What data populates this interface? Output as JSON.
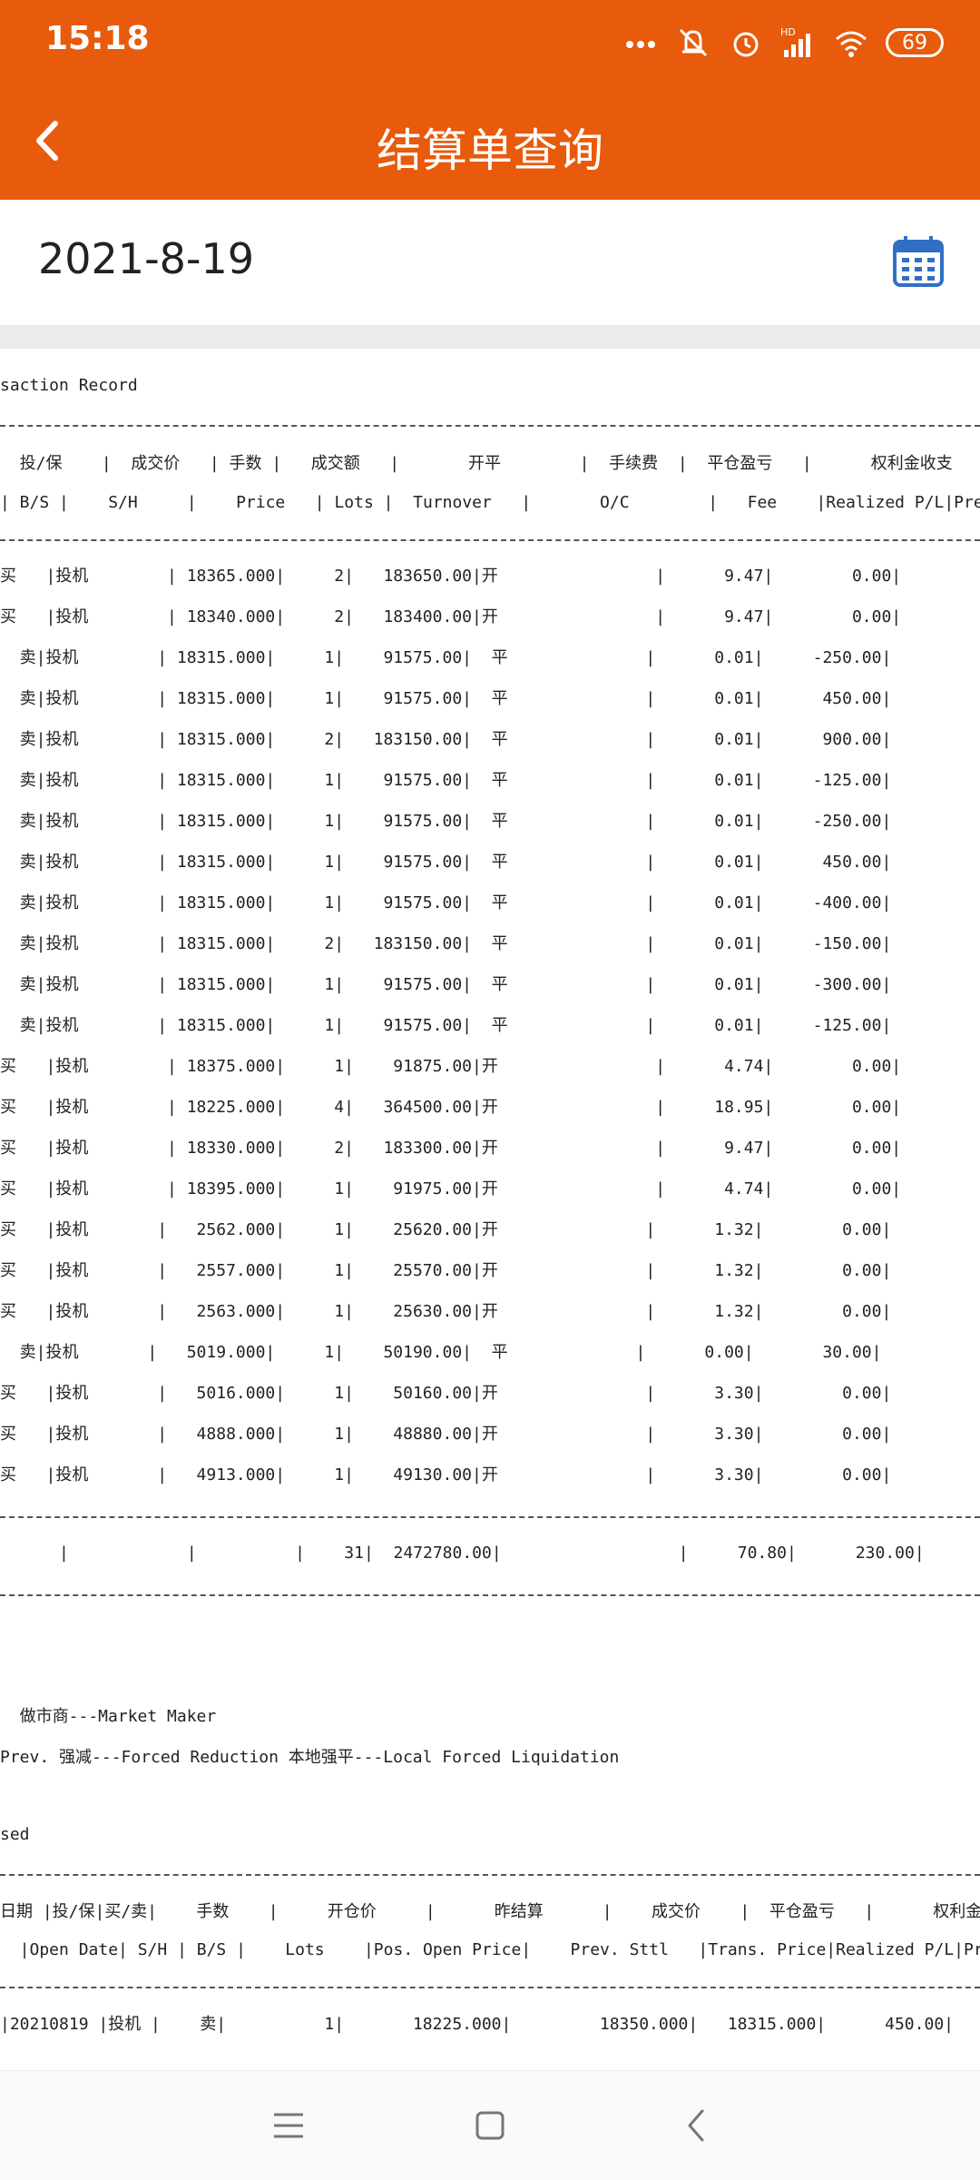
{
  "status_bar": {
    "time": "15:18",
    "network": "HD",
    "battery": "69",
    "icons": [
      "more-dots-icon",
      "bell-muted-icon",
      "alarm-icon",
      "signal-icon",
      "wifi-icon",
      "battery-icon"
    ]
  },
  "header": {
    "title": "结算单查询",
    "back_icon": "chevron-left-icon"
  },
  "date_row": {
    "date": "2021-8-19",
    "calendar_icon": "calendar-icon"
  },
  "report": {
    "section_title": "saction Record",
    "header_cn": "  投/保    |  成交价   | 手数 |   成交额   |       开平        |  手续费  |  平仓盈亏   |      权利金收支      |",
    "header_en": "| B/S |    S/H     |    Price   | Lots |  Turnover   |       O/C        |   Fee    |Realized P/L|Premium Re",
    "rows": [
      "买   |投机        | 18365.000|     2|   183650.00|开                |      9.47|        0.00|",
      "买   |投机        | 18340.000|     2|   183400.00|开                |      9.47|        0.00|",
      "  卖|投机        | 18315.000|     1|    91575.00|  平              |      0.01|     -250.00|",
      "  卖|投机        | 18315.000|     1|    91575.00|  平              |      0.01|      450.00|",
      "  卖|投机        | 18315.000|     2|   183150.00|  平              |      0.01|      900.00|",
      "  卖|投机        | 18315.000|     1|    91575.00|  平              |      0.01|     -125.00|",
      "  卖|投机        | 18315.000|     1|    91575.00|  平              |      0.01|     -250.00|",
      "  卖|投机        | 18315.000|     1|    91575.00|  平              |      0.01|      450.00|",
      "  卖|投机        | 18315.000|     1|    91575.00|  平              |      0.01|     -400.00|",
      "  卖|投机        | 18315.000|     2|   183150.00|  平              |      0.01|     -150.00|",
      "  卖|投机        | 18315.000|     1|    91575.00|  平              |      0.01|     -300.00|",
      "  卖|投机        | 18315.000|     1|    91575.00|  平              |      0.01|     -125.00|",
      "买   |投机        | 18375.000|     1|    91875.00|开                |      4.74|        0.00|",
      "买   |投机        | 18225.000|     4|   364500.00|开                |     18.95|        0.00|",
      "买   |投机        | 18330.000|     2|   183300.00|开                |      9.47|        0.00|",
      "买   |投机        | 18395.000|     1|    91975.00|开                |      4.74|        0.00|",
      "买   |投机       |   2562.000|     1|    25620.00|开               |      1.32|        0.00|",
      "买   |投机       |   2557.000|     1|    25570.00|开               |      1.32|        0.00|",
      "买   |投机       |   2563.000|     1|    25630.00|开               |      1.32|        0.00|",
      "  卖|投机       |   5019.000|     1|    50190.00|  平             |      0.00|       30.00|",
      "买   |投机       |   5016.000|     1|    50160.00|开               |      3.30|        0.00|",
      "买   |投机       |   4888.000|     1|    48880.00|开               |      3.30|        0.00|",
      "买   |投机       |   4913.000|     1|    49130.00|开               |      3.30|        0.00|"
    ],
    "total_row": "      |            |          |    31|  2472780.00|                  |     70.80|      230.00|",
    "note_1": "  做市商---Market Maker",
    "note_2": "Prev. 强减---Forced Reduction 本地强平---Local Forced Liquidation",
    "section2_title": "sed",
    "header2_cn": "日期 |投/保|买/卖|    手数    |     开仓价     |      昨结算      |    成交价    |  平仓盈亏   |      权利金收支      |",
    "header2_en": "  |Open Date| S/H | B/S |    Lots    |Pos. Open Price|    Prev. Sttl   |Trans. Price|Realized P/L|Premium R",
    "row2": "|20210819 |投机 |    卖|          1|       18225.000|         18350.000|   18315.000|      450.00|"
  },
  "nav": {
    "icons": [
      "menu-icon",
      "home-square-icon",
      "back-triangle-icon"
    ]
  }
}
